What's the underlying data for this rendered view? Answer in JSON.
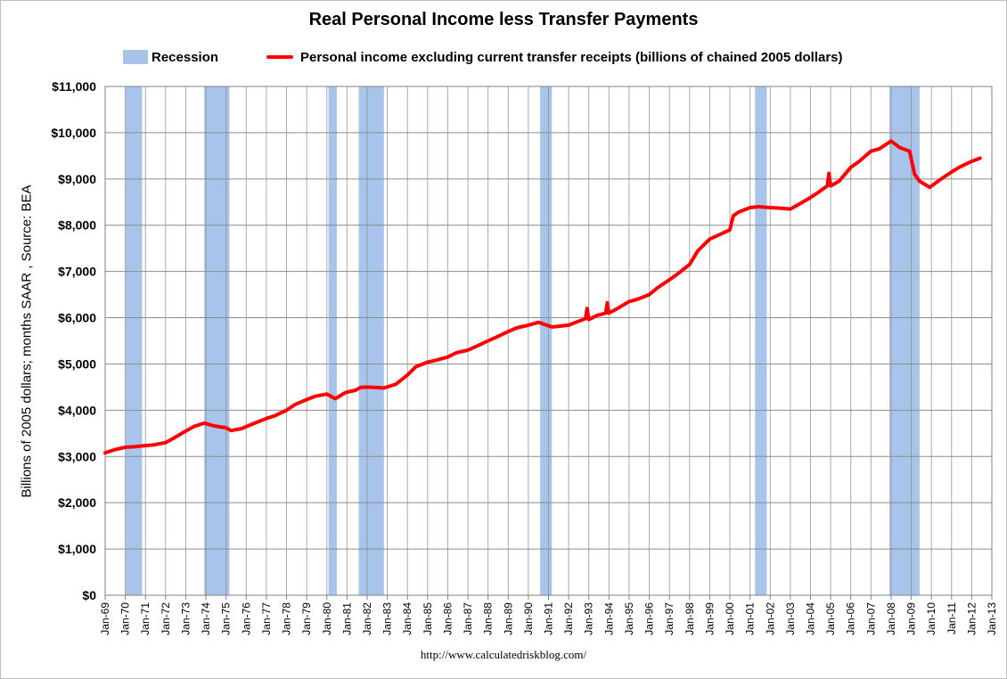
{
  "chart_data": {
    "type": "line",
    "title": "Real Personal Income less Transfer Payments",
    "ylabel": "Billions of 2005 dollars; months SAAR , Source: BEA",
    "xlabel": "",
    "ylim": [
      0,
      11000
    ],
    "xlim": [
      "1969-01",
      "2013-01"
    ],
    "y_ticks": [
      "$0",
      "$1,000",
      "$2,000",
      "$3,000",
      "$4,000",
      "$5,000",
      "$6,000",
      "$7,000",
      "$8,000",
      "$9,000",
      "$10,000",
      "$11,000"
    ],
    "x_ticks": [
      "Jan-69",
      "Jan-70",
      "Jan-71",
      "Jan-72",
      "Jan-73",
      "Jan-74",
      "Jan-75",
      "Jan-76",
      "Jan-77",
      "Jan-78",
      "Jan-79",
      "Jan-80",
      "Jan-81",
      "Jan-82",
      "Jan-83",
      "Jan-84",
      "Jan-85",
      "Jan-86",
      "Jan-87",
      "Jan-88",
      "Jan-89",
      "Jan-90",
      "Jan-91",
      "Jan-92",
      "Jan-93",
      "Jan-94",
      "Jan-95",
      "Jan-96",
      "Jan-97",
      "Jan-98",
      "Jan-99",
      "Jan-00",
      "Jan-01",
      "Jan-02",
      "Jan-03",
      "Jan-04",
      "Jan-05",
      "Jan-06",
      "Jan-07",
      "Jan-08",
      "Jan-09",
      "Jan-10",
      "Jan-11",
      "Jan-12",
      "Jan-13"
    ],
    "grid": true,
    "legend_position": "top",
    "recessions": {
      "name": "Recession",
      "color": "#a9c4ea",
      "periods": [
        [
          "1970-01",
          "1970-11"
        ],
        [
          "1973-12",
          "1975-03"
        ],
        [
          "1980-02",
          "1980-07"
        ],
        [
          "1981-08",
          "1982-11"
        ],
        [
          "1990-08",
          "1991-03"
        ],
        [
          "2001-04",
          "2001-11"
        ],
        [
          "2007-12",
          "2009-06"
        ]
      ]
    },
    "series": [
      {
        "name": "Personal income excluding current transfer receipts (billions of chained 2005 dollars)",
        "color": "#ff0000",
        "points": [
          [
            "1969-01",
            3080
          ],
          [
            "1969-07",
            3150
          ],
          [
            "1970-01",
            3200
          ],
          [
            "1970-06",
            3210
          ],
          [
            "1970-12",
            3230
          ],
          [
            "1971-06",
            3250
          ],
          [
            "1972-01",
            3300
          ],
          [
            "1972-06",
            3400
          ],
          [
            "1973-01",
            3550
          ],
          [
            "1973-06",
            3650
          ],
          [
            "1973-12",
            3720
          ],
          [
            "1974-06",
            3660
          ],
          [
            "1975-01",
            3620
          ],
          [
            "1975-04",
            3560
          ],
          [
            "1975-10",
            3600
          ],
          [
            "1976-06",
            3720
          ],
          [
            "1977-01",
            3820
          ],
          [
            "1977-06",
            3880
          ],
          [
            "1978-01",
            4000
          ],
          [
            "1978-06",
            4120
          ],
          [
            "1979-01",
            4230
          ],
          [
            "1979-06",
            4300
          ],
          [
            "1980-01",
            4350
          ],
          [
            "1980-06",
            4250
          ],
          [
            "1980-12",
            4380
          ],
          [
            "1981-06",
            4430
          ],
          [
            "1981-09",
            4490
          ],
          [
            "1982-01",
            4500
          ],
          [
            "1982-06",
            4490
          ],
          [
            "1982-11",
            4480
          ],
          [
            "1983-06",
            4560
          ],
          [
            "1984-01",
            4760
          ],
          [
            "1984-06",
            4940
          ],
          [
            "1985-01",
            5040
          ],
          [
            "1985-06",
            5080
          ],
          [
            "1986-01",
            5150
          ],
          [
            "1986-06",
            5240
          ],
          [
            "1987-01",
            5300
          ],
          [
            "1987-06",
            5380
          ],
          [
            "1988-01",
            5500
          ],
          [
            "1988-06",
            5580
          ],
          [
            "1989-01",
            5700
          ],
          [
            "1989-06",
            5780
          ],
          [
            "1990-01",
            5840
          ],
          [
            "1990-07",
            5900
          ],
          [
            "1991-03",
            5800
          ],
          [
            "1991-06",
            5810
          ],
          [
            "1992-01",
            5840
          ],
          [
            "1992-06",
            5910
          ],
          [
            "1992-11",
            5980
          ],
          [
            "1992-12",
            6200
          ],
          [
            "1993-01",
            5960
          ],
          [
            "1993-06",
            6050
          ],
          [
            "1993-11",
            6100
          ],
          [
            "1993-12",
            6320
          ],
          [
            "1994-01",
            6100
          ],
          [
            "1994-06",
            6200
          ],
          [
            "1995-01",
            6350
          ],
          [
            "1995-06",
            6400
          ],
          [
            "1996-01",
            6500
          ],
          [
            "1996-06",
            6650
          ],
          [
            "1997-01",
            6820
          ],
          [
            "1997-06",
            6950
          ],
          [
            "1998-01",
            7150
          ],
          [
            "1998-06",
            7450
          ],
          [
            "1999-01",
            7700
          ],
          [
            "1999-06",
            7780
          ],
          [
            "2000-01",
            7900
          ],
          [
            "2000-03",
            8200
          ],
          [
            "2000-06",
            8280
          ],
          [
            "2001-01",
            8380
          ],
          [
            "2001-06",
            8400
          ],
          [
            "2002-01",
            8380
          ],
          [
            "2002-06",
            8370
          ],
          [
            "2003-01",
            8350
          ],
          [
            "2003-06",
            8450
          ],
          [
            "2004-01",
            8600
          ],
          [
            "2004-06",
            8720
          ],
          [
            "2004-11",
            8850
          ],
          [
            "2004-12",
            9120
          ],
          [
            "2005-01",
            8850
          ],
          [
            "2005-06",
            8950
          ],
          [
            "2006-01",
            9250
          ],
          [
            "2006-06",
            9380
          ],
          [
            "2007-01",
            9600
          ],
          [
            "2007-06",
            9650
          ],
          [
            "2008-01",
            9820
          ],
          [
            "2008-06",
            9680
          ],
          [
            "2008-12",
            9600
          ],
          [
            "2009-03",
            9100
          ],
          [
            "2009-06",
            8950
          ],
          [
            "2009-12",
            8820
          ],
          [
            "2010-06",
            8980
          ],
          [
            "2011-01",
            9150
          ],
          [
            "2011-06",
            9260
          ],
          [
            "2012-01",
            9380
          ],
          [
            "2012-06",
            9450
          ]
        ]
      }
    ]
  },
  "source_text": "http://www.calculatedriskblog.com/"
}
